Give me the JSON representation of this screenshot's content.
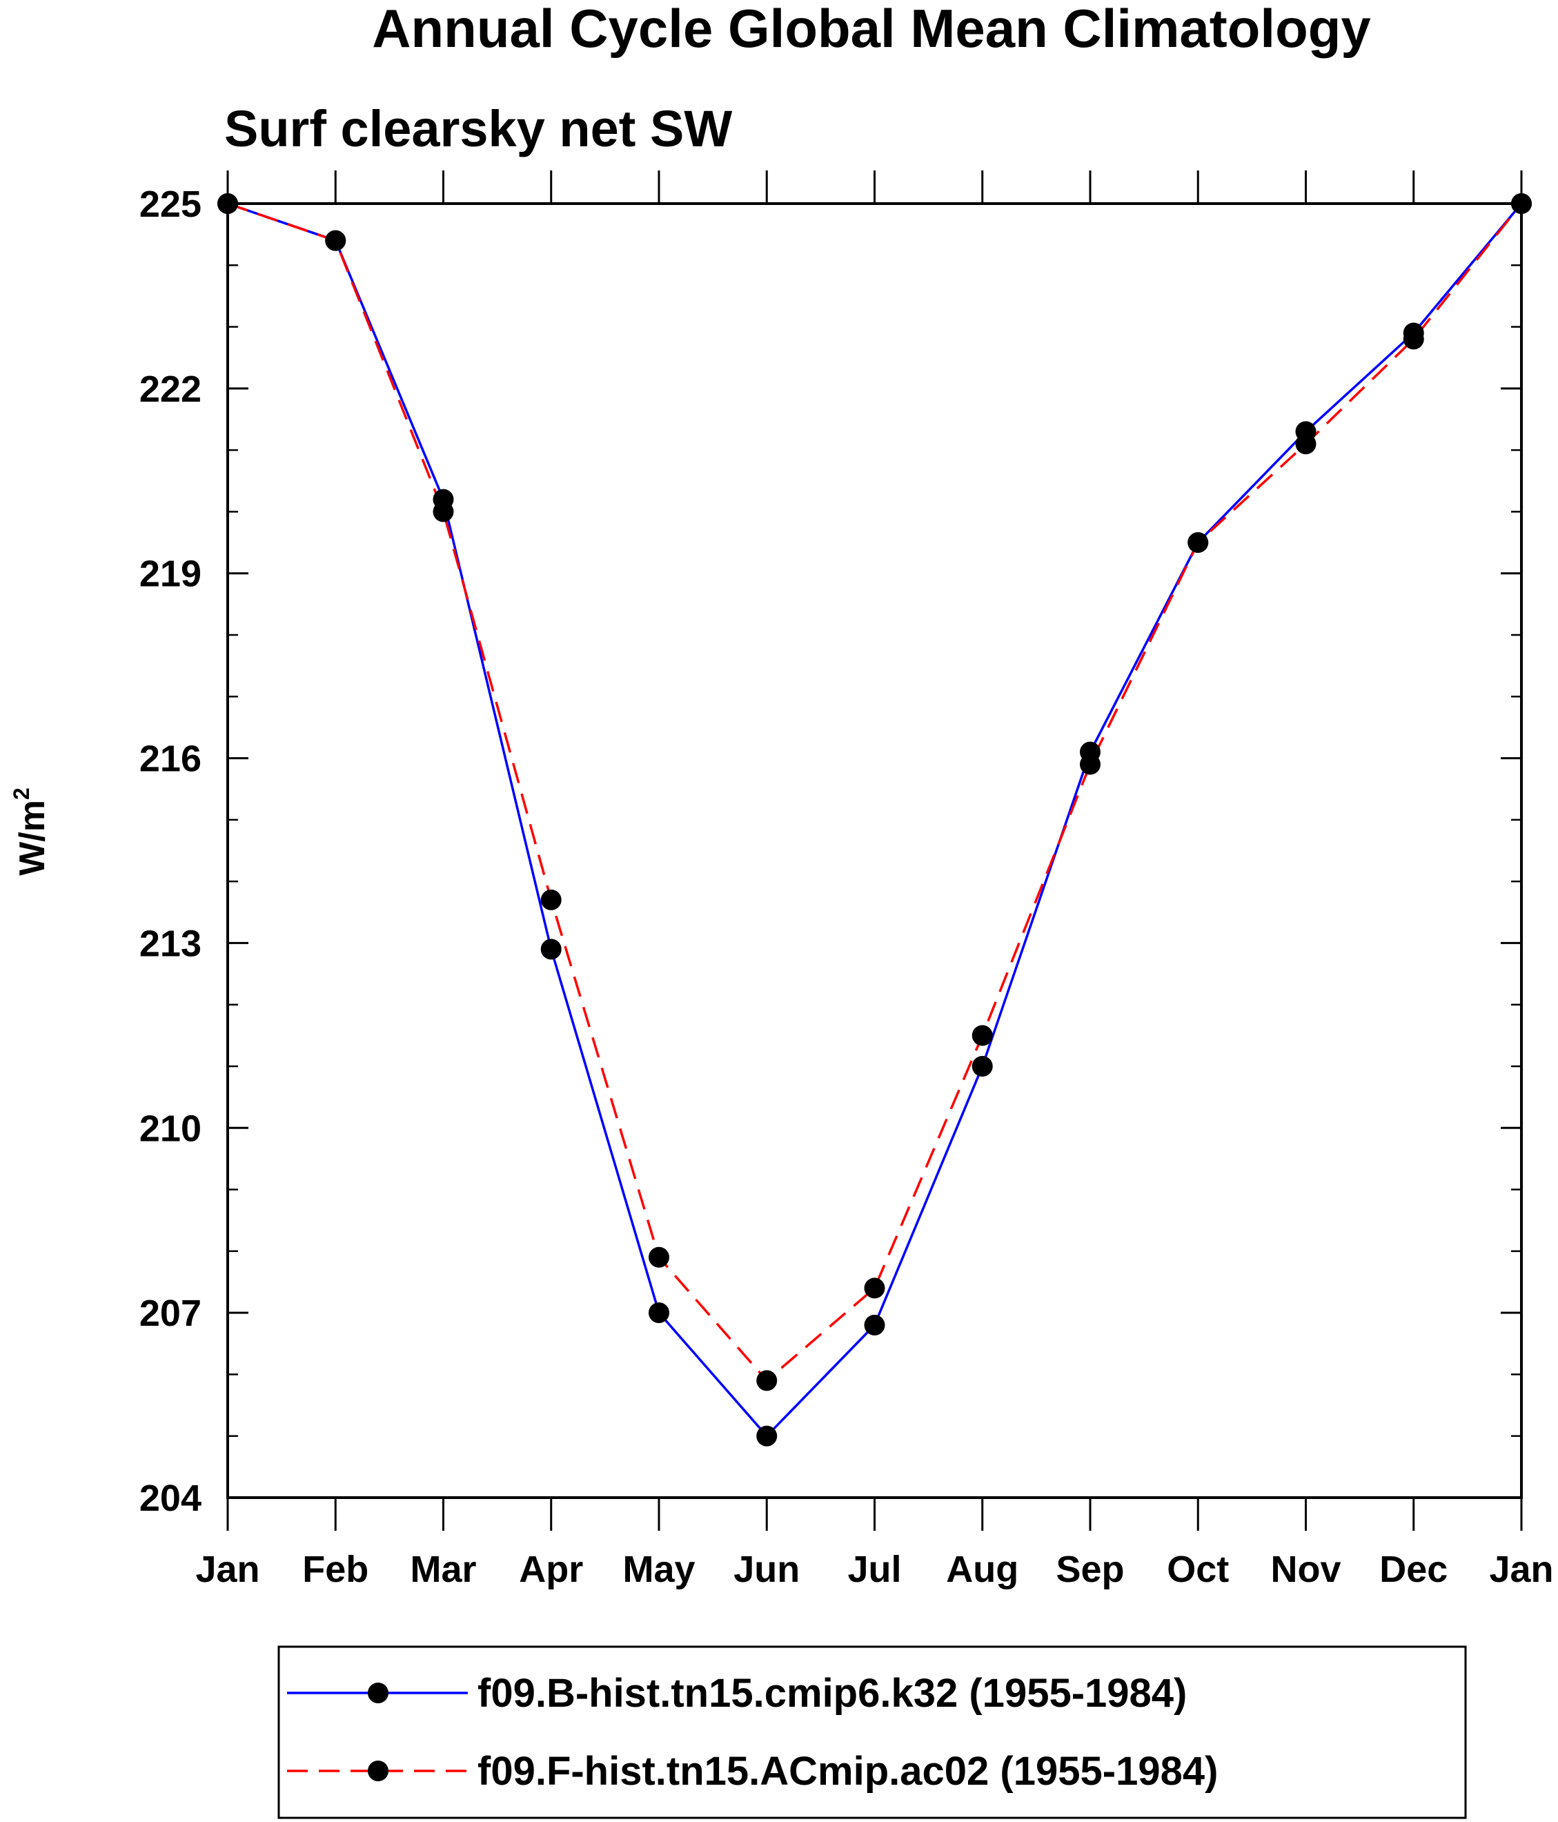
{
  "chart_data": {
    "type": "line",
    "title": "Annual Cycle Global Mean Climatology",
    "subtitle": "Surf clearsky net SW",
    "ylabel": "W/m",
    "ylabel_sup": "2",
    "xlabel": "",
    "categories": [
      "Jan",
      "Feb",
      "Mar",
      "Apr",
      "May",
      "Jun",
      "Jul",
      "Aug",
      "Sep",
      "Oct",
      "Nov",
      "Dec",
      "Jan"
    ],
    "ylim": [
      204,
      225
    ],
    "yticks": [
      204,
      207,
      210,
      213,
      216,
      219,
      222,
      225
    ],
    "grid": false,
    "legend_position": "bottom",
    "series": [
      {
        "name": "f09.B-hist.tn15.cmip6.k32 (1955-1984)",
        "color": "#0000ff",
        "dash": "solid",
        "values": [
          225.0,
          224.4,
          220.2,
          212.9,
          207.0,
          205.0,
          206.8,
          211.0,
          216.1,
          219.5,
          221.3,
          222.9,
          225.0
        ]
      },
      {
        "name": "f09.F-hist.tn15.ACmip.ac02 (1955-1984)",
        "color": "#ff0000",
        "dash": "dashed",
        "values": [
          225.0,
          224.4,
          220.0,
          213.7,
          207.9,
          205.9,
          207.4,
          211.5,
          215.9,
          219.5,
          221.1,
          222.8,
          225.0
        ]
      }
    ]
  }
}
